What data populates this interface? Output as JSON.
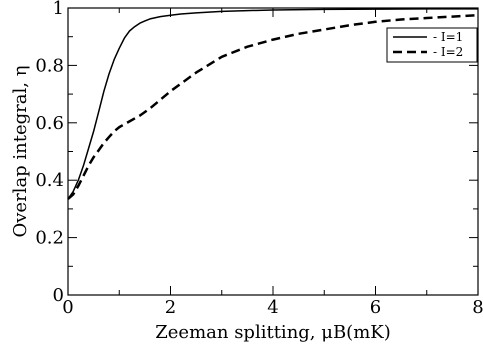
{
  "chart_data": {
    "type": "line",
    "title": "",
    "xlabel": "Zeeman splitting, μB(mK)",
    "ylabel": "Overlap integral, η",
    "xlim": [
      0,
      8
    ],
    "ylim": [
      0,
      1
    ],
    "x_ticks": [
      "0",
      "2",
      "4",
      "6",
      "8"
    ],
    "y_ticks": [
      "0",
      "0.2",
      "0.4",
      "0.6",
      "0.8",
      "1"
    ],
    "grid": false,
    "legend_position": "top-right",
    "series": [
      {
        "name": "- I=1",
        "style": "solid",
        "color": "#000000",
        "x": [
          0,
          0.1,
          0.2,
          0.3,
          0.4,
          0.5,
          0.6,
          0.7,
          0.8,
          0.9,
          1.0,
          1.1,
          1.2,
          1.3,
          1.4,
          1.5,
          1.6,
          1.8,
          2.0,
          2.2,
          2.5,
          3.0,
          3.5,
          4.0,
          5.0,
          6.0,
          7.0,
          8.0
        ],
        "y": [
          0.335,
          0.36,
          0.4,
          0.45,
          0.51,
          0.57,
          0.64,
          0.71,
          0.77,
          0.82,
          0.86,
          0.895,
          0.92,
          0.935,
          0.947,
          0.955,
          0.962,
          0.97,
          0.975,
          0.979,
          0.983,
          0.988,
          0.991,
          0.993,
          0.995,
          0.996,
          0.997,
          0.997
        ]
      },
      {
        "name": "- I=2",
        "style": "dashed",
        "color": "#000000",
        "x": [
          0,
          0.1,
          0.2,
          0.3,
          0.4,
          0.5,
          0.6,
          0.7,
          0.8,
          0.9,
          1.0,
          1.2,
          1.4,
          1.6,
          1.8,
          2.0,
          2.5,
          3.0,
          3.5,
          4.0,
          4.5,
          5.0,
          5.5,
          6.0,
          6.5,
          7.0,
          7.5,
          8.0
        ],
        "y": [
          0.335,
          0.35,
          0.38,
          0.415,
          0.45,
          0.48,
          0.505,
          0.53,
          0.55,
          0.57,
          0.585,
          0.605,
          0.625,
          0.65,
          0.68,
          0.71,
          0.775,
          0.83,
          0.865,
          0.89,
          0.91,
          0.925,
          0.94,
          0.952,
          0.96,
          0.965,
          0.97,
          0.975
        ]
      }
    ]
  }
}
